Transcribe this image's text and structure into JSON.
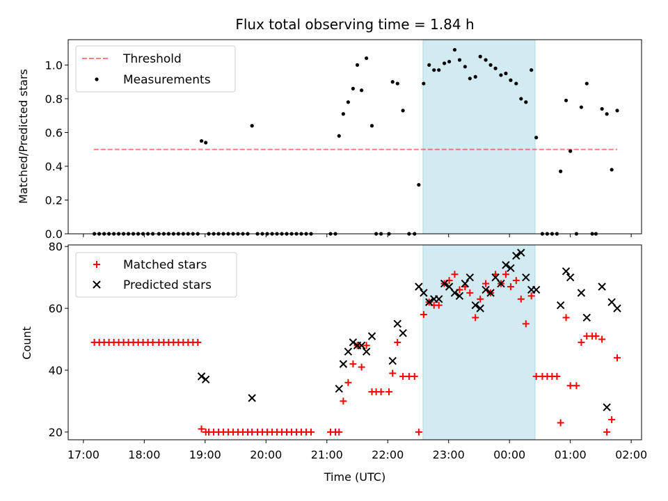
{
  "figure": {
    "title": "Flux total observing time = 1.84 h",
    "xlabel": "Time (UTC)",
    "xticks": [
      "17:00",
      "18:00",
      "19:00",
      "20:00",
      "21:00",
      "22:00",
      "23:00",
      "00:00",
      "01:00",
      "02:00"
    ],
    "xtick_hours": [
      17,
      18,
      19,
      20,
      21,
      22,
      23,
      24,
      25,
      26
    ],
    "xlim_hours": [
      16.75,
      26.17
    ],
    "highlight_span_hours": [
      22.58,
      24.42
    ],
    "colors": {
      "highlight": "#add8e6",
      "threshold": "#ff0000",
      "measurements": "#000000",
      "matched": "#ff0000",
      "predicted": "#000000"
    }
  },
  "chart_data": [
    {
      "type": "scatter",
      "panel": "top",
      "ylabel": "Matched/Predicted stars",
      "ylim": [
        0,
        1.15
      ],
      "yticks": [
        "0.0",
        "0.2",
        "0.4",
        "0.6",
        "0.8",
        "1.0"
      ],
      "ytick_values": [
        0,
        0.2,
        0.4,
        0.6,
        0.8,
        1.0
      ],
      "legend": "top-left",
      "threshold": {
        "name": "Threshold",
        "value": 0.5,
        "x_range": [
          17.17,
          25.77
        ]
      },
      "series": [
        {
          "name": "Measurements",
          "points": [
            [
              17.18,
              0
            ],
            [
              17.26,
              0
            ],
            [
              17.34,
              0
            ],
            [
              17.42,
              0
            ],
            [
              17.5,
              0
            ],
            [
              17.58,
              0
            ],
            [
              17.66,
              0
            ],
            [
              17.74,
              0
            ],
            [
              17.82,
              0
            ],
            [
              17.9,
              0
            ],
            [
              17.98,
              0
            ],
            [
              18.06,
              0
            ],
            [
              18.14,
              0
            ],
            [
              18.24,
              0
            ],
            [
              18.32,
              0
            ],
            [
              18.4,
              0
            ],
            [
              18.48,
              0
            ],
            [
              18.56,
              0
            ],
            [
              18.64,
              0
            ],
            [
              18.72,
              0
            ],
            [
              18.8,
              0
            ],
            [
              18.88,
              0
            ],
            [
              18.94,
              0.55
            ],
            [
              19.01,
              0.54
            ],
            [
              19.06,
              0
            ],
            [
              19.14,
              0
            ],
            [
              19.22,
              0
            ],
            [
              19.3,
              0
            ],
            [
              19.38,
              0
            ],
            [
              19.46,
              0
            ],
            [
              19.54,
              0
            ],
            [
              19.62,
              0
            ],
            [
              19.7,
              0
            ],
            [
              19.77,
              0.64
            ],
            [
              19.86,
              0
            ],
            [
              19.94,
              0
            ],
            [
              20.02,
              0
            ],
            [
              20.1,
              0
            ],
            [
              20.18,
              0
            ],
            [
              20.26,
              0
            ],
            [
              20.34,
              0
            ],
            [
              20.42,
              0
            ],
            [
              20.5,
              0
            ],
            [
              20.58,
              0
            ],
            [
              20.66,
              0
            ],
            [
              20.74,
              0
            ],
            [
              21.06,
              0
            ],
            [
              21.14,
              0
            ],
            [
              21.2,
              0.58
            ],
            [
              21.27,
              0.71
            ],
            [
              21.35,
              0.78
            ],
            [
              21.43,
              0.86
            ],
            [
              21.5,
              1.0
            ],
            [
              21.57,
              0.85
            ],
            [
              21.65,
              1.04
            ],
            [
              21.74,
              0.64
            ],
            [
              21.81,
              0
            ],
            [
              21.89,
              0
            ],
            [
              22.02,
              0
            ],
            [
              22.08,
              0.9
            ],
            [
              22.16,
              0.89
            ],
            [
              22.25,
              0.73
            ],
            [
              22.35,
              0
            ],
            [
              22.44,
              0
            ],
            [
              22.51,
              0.29
            ],
            [
              22.59,
              0.89
            ],
            [
              22.68,
              1.0
            ],
            [
              22.76,
              0.97
            ],
            [
              22.84,
              0.97
            ],
            [
              22.93,
              1.01
            ],
            [
              23.01,
              1.02
            ],
            [
              23.1,
              1.09
            ],
            [
              23.18,
              1.03
            ],
            [
              23.27,
              0.99
            ],
            [
              23.35,
              0.92
            ],
            [
              23.44,
              0.93
            ],
            [
              23.52,
              1.05
            ],
            [
              23.61,
              1.03
            ],
            [
              23.69,
              1.0
            ],
            [
              23.77,
              0.98
            ],
            [
              23.86,
              0.94
            ],
            [
              23.94,
              0.95
            ],
            [
              24.02,
              0.91
            ],
            [
              24.11,
              0.89
            ],
            [
              24.19,
              0.8
            ],
            [
              24.27,
              0.78
            ],
            [
              24.36,
              0.97
            ],
            [
              24.44,
              0.57
            ],
            [
              24.54,
              0
            ],
            [
              24.62,
              0
            ],
            [
              24.7,
              0
            ],
            [
              24.78,
              0
            ],
            [
              24.84,
              0.37
            ],
            [
              24.93,
              0.79
            ],
            [
              25.0,
              0.49
            ],
            [
              25.1,
              0
            ],
            [
              25.18,
              0.75
            ],
            [
              25.27,
              0.89
            ],
            [
              25.36,
              0
            ],
            [
              25.42,
              0
            ],
            [
              25.52,
              0.74
            ],
            [
              25.6,
              0.71
            ],
            [
              25.68,
              0.38
            ],
            [
              25.77,
              0.73
            ]
          ]
        }
      ]
    },
    {
      "type": "scatter",
      "panel": "bottom",
      "ylabel": "Count",
      "ylim": [
        17.5,
        80.5
      ],
      "yticks": [
        "20",
        "40",
        "60",
        "80"
      ],
      "ytick_values": [
        20,
        40,
        60,
        80
      ],
      "legend": "top-left",
      "series": [
        {
          "name": "Matched stars",
          "marker": "plus",
          "points": [
            [
              17.18,
              49
            ],
            [
              17.26,
              49
            ],
            [
              17.34,
              49
            ],
            [
              17.42,
              49
            ],
            [
              17.5,
              49
            ],
            [
              17.58,
              49
            ],
            [
              17.66,
              49
            ],
            [
              17.74,
              49
            ],
            [
              17.82,
              49
            ],
            [
              17.9,
              49
            ],
            [
              17.98,
              49
            ],
            [
              18.06,
              49
            ],
            [
              18.14,
              49
            ],
            [
              18.24,
              49
            ],
            [
              18.32,
              49
            ],
            [
              18.4,
              49
            ],
            [
              18.48,
              49
            ],
            [
              18.56,
              49
            ],
            [
              18.64,
              49
            ],
            [
              18.72,
              49
            ],
            [
              18.8,
              49
            ],
            [
              18.88,
              49
            ],
            [
              18.94,
              21
            ],
            [
              19.01,
              20
            ],
            [
              19.06,
              20
            ],
            [
              19.14,
              20
            ],
            [
              19.22,
              20
            ],
            [
              19.3,
              20
            ],
            [
              19.38,
              20
            ],
            [
              19.46,
              20
            ],
            [
              19.54,
              20
            ],
            [
              19.62,
              20
            ],
            [
              19.7,
              20
            ],
            [
              19.77,
              20
            ],
            [
              19.86,
              20
            ],
            [
              19.94,
              20
            ],
            [
              20.02,
              20
            ],
            [
              20.1,
              20
            ],
            [
              20.18,
              20
            ],
            [
              20.26,
              20
            ],
            [
              20.34,
              20
            ],
            [
              20.42,
              20
            ],
            [
              20.5,
              20
            ],
            [
              20.58,
              20
            ],
            [
              20.66,
              20
            ],
            [
              20.74,
              20
            ],
            [
              21.06,
              20
            ],
            [
              21.14,
              20
            ],
            [
              21.2,
              20
            ],
            [
              21.27,
              30
            ],
            [
              21.35,
              36
            ],
            [
              21.43,
              42
            ],
            [
              21.5,
              48
            ],
            [
              21.57,
              41
            ],
            [
              21.65,
              48
            ],
            [
              21.74,
              33
            ],
            [
              21.81,
              33
            ],
            [
              21.89,
              33
            ],
            [
              22.02,
              33
            ],
            [
              22.08,
              39
            ],
            [
              22.16,
              49
            ],
            [
              22.25,
              38
            ],
            [
              22.35,
              38
            ],
            [
              22.44,
              38
            ],
            [
              22.51,
              20
            ],
            [
              22.59,
              58
            ],
            [
              22.68,
              62
            ],
            [
              22.76,
              61
            ],
            [
              22.84,
              61
            ],
            [
              22.93,
              68
            ],
            [
              23.01,
              69
            ],
            [
              23.1,
              71
            ],
            [
              23.18,
              66
            ],
            [
              23.27,
              67
            ],
            [
              23.35,
              65
            ],
            [
              23.44,
              57
            ],
            [
              23.52,
              63
            ],
            [
              23.61,
              68
            ],
            [
              23.69,
              65
            ],
            [
              23.77,
              71
            ],
            [
              23.86,
              68
            ],
            [
              23.94,
              71
            ],
            [
              24.02,
              67
            ],
            [
              24.11,
              69
            ],
            [
              24.19,
              63
            ],
            [
              24.27,
              55
            ],
            [
              24.36,
              64
            ],
            [
              24.44,
              38
            ],
            [
              24.54,
              38
            ],
            [
              24.62,
              38
            ],
            [
              24.7,
              38
            ],
            [
              24.78,
              38
            ],
            [
              24.84,
              23
            ],
            [
              24.93,
              57
            ],
            [
              25.0,
              35
            ],
            [
              25.1,
              35
            ],
            [
              25.18,
              49
            ],
            [
              25.27,
              51
            ],
            [
              25.36,
              51
            ],
            [
              25.42,
              51
            ],
            [
              25.52,
              50
            ],
            [
              25.6,
              20
            ],
            [
              25.68,
              24
            ],
            [
              25.77,
              44
            ]
          ]
        },
        {
          "name": "Predicted stars",
          "marker": "x",
          "points": [
            [
              18.94,
              38
            ],
            [
              19.01,
              37
            ],
            [
              19.77,
              31
            ],
            [
              21.2,
              34
            ],
            [
              21.27,
              42
            ],
            [
              21.35,
              46
            ],
            [
              21.43,
              49
            ],
            [
              21.5,
              48
            ],
            [
              21.57,
              48
            ],
            [
              21.65,
              46
            ],
            [
              21.74,
              51
            ],
            [
              22.08,
              43
            ],
            [
              22.16,
              55
            ],
            [
              22.25,
              52
            ],
            [
              22.51,
              67
            ],
            [
              22.59,
              65
            ],
            [
              22.68,
              62
            ],
            [
              22.76,
              63
            ],
            [
              22.84,
              63
            ],
            [
              22.93,
              68
            ],
            [
              23.01,
              67
            ],
            [
              23.1,
              65
            ],
            [
              23.18,
              64
            ],
            [
              23.27,
              68
            ],
            [
              23.35,
              70
            ],
            [
              23.44,
              61
            ],
            [
              23.52,
              60
            ],
            [
              23.61,
              66
            ],
            [
              23.69,
              65
            ],
            [
              23.77,
              70
            ],
            [
              23.86,
              68
            ],
            [
              23.94,
              74
            ],
            [
              24.02,
              73
            ],
            [
              24.11,
              77
            ],
            [
              24.19,
              78
            ],
            [
              24.27,
              70
            ],
            [
              24.36,
              66
            ],
            [
              24.44,
              66
            ],
            [
              24.84,
              61
            ],
            [
              24.93,
              72
            ],
            [
              25.0,
              70
            ],
            [
              25.18,
              65
            ],
            [
              25.27,
              57
            ],
            [
              25.52,
              67
            ],
            [
              25.6,
              28
            ],
            [
              25.68,
              62
            ],
            [
              25.77,
              60
            ]
          ]
        }
      ]
    }
  ]
}
